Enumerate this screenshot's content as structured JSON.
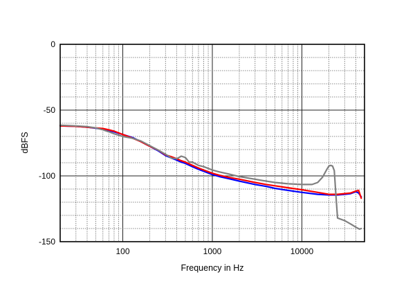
{
  "chart_data": {
    "type": "line",
    "title": "",
    "xlabel": "Frequency in Hz",
    "ylabel": "dBFS",
    "x_scale": "log",
    "xlim": [
      20,
      50000
    ],
    "ylim": [
      -150,
      0
    ],
    "x_ticks": [
      100,
      1000,
      10000
    ],
    "x_tick_labels": [
      "100",
      "1000",
      "10000"
    ],
    "y_ticks": [
      0,
      -50,
      -100,
      -150
    ],
    "y_tick_labels": [
      "0",
      "-50",
      "-100",
      "-150"
    ],
    "grid": true,
    "legend": "none",
    "series": [
      {
        "color": "#0000ff",
        "points": [
          [
            20,
            -62
          ],
          [
            30,
            -62.3
          ],
          [
            40,
            -63
          ],
          [
            50,
            -63.8
          ],
          [
            60,
            -64.5
          ],
          [
            70,
            -65.5
          ],
          [
            80,
            -66.5
          ],
          [
            100,
            -68.5
          ],
          [
            130,
            -71
          ],
          [
            160,
            -74
          ],
          [
            200,
            -77.5
          ],
          [
            250,
            -81
          ],
          [
            300,
            -84.5
          ],
          [
            350,
            -86.5
          ],
          [
            400,
            -88
          ],
          [
            450,
            -89.5
          ],
          [
            500,
            -90.5
          ],
          [
            600,
            -93
          ],
          [
            700,
            -95
          ],
          [
            800,
            -96.5
          ],
          [
            1000,
            -99
          ],
          [
            1200,
            -100.5
          ],
          [
            1500,
            -102
          ],
          [
            2000,
            -104
          ],
          [
            3000,
            -106.5
          ],
          [
            4000,
            -108
          ],
          [
            5000,
            -109.5
          ],
          [
            7000,
            -111
          ],
          [
            10000,
            -112.5
          ],
          [
            15000,
            -114
          ],
          [
            20000,
            -114.5
          ],
          [
            25000,
            -114.5
          ],
          [
            30000,
            -114
          ],
          [
            35000,
            -113.5
          ],
          [
            40000,
            -112
          ],
          [
            43000,
            -113
          ],
          [
            46000,
            -116
          ]
        ]
      },
      {
        "color": "#ff0000",
        "points": [
          [
            20,
            -62
          ],
          [
            30,
            -62.3
          ],
          [
            40,
            -63
          ],
          [
            50,
            -63.5
          ],
          [
            60,
            -64
          ],
          [
            70,
            -65
          ],
          [
            80,
            -66
          ],
          [
            100,
            -68.5
          ],
          [
            130,
            -71.5
          ],
          [
            160,
            -74
          ],
          [
            200,
            -77.5
          ],
          [
            250,
            -80.5
          ],
          [
            300,
            -84
          ],
          [
            350,
            -85.5
          ],
          [
            400,
            -87
          ],
          [
            450,
            -88.5
          ],
          [
            500,
            -89.5
          ],
          [
            600,
            -92
          ],
          [
            700,
            -94
          ],
          [
            800,
            -95.5
          ],
          [
            1000,
            -98
          ],
          [
            1200,
            -99.5
          ],
          [
            1500,
            -101
          ],
          [
            2000,
            -102.5
          ],
          [
            3000,
            -105
          ],
          [
            4000,
            -106.5
          ],
          [
            5000,
            -107.5
          ],
          [
            7000,
            -109
          ],
          [
            10000,
            -110.5
          ],
          [
            15000,
            -112.5
          ],
          [
            20000,
            -114
          ],
          [
            25000,
            -114
          ],
          [
            30000,
            -113.5
          ],
          [
            35000,
            -113
          ],
          [
            40000,
            -111.5
          ],
          [
            43000,
            -111
          ],
          [
            46000,
            -117
          ]
        ]
      },
      {
        "color": "#808080",
        "points": [
          [
            20,
            -61.5
          ],
          [
            30,
            -62
          ],
          [
            40,
            -62.5
          ],
          [
            50,
            -63.5
          ],
          [
            60,
            -65
          ],
          [
            70,
            -66.5
          ],
          [
            80,
            -68
          ],
          [
            100,
            -70
          ],
          [
            130,
            -71.5
          ],
          [
            160,
            -73.5
          ],
          [
            200,
            -77
          ],
          [
            250,
            -80.5
          ],
          [
            300,
            -83.5
          ],
          [
            350,
            -86.5
          ],
          [
            400,
            -87
          ],
          [
            450,
            -85
          ],
          [
            500,
            -86
          ],
          [
            550,
            -89.5
          ],
          [
            600,
            -89.5
          ],
          [
            700,
            -92
          ],
          [
            800,
            -93
          ],
          [
            1000,
            -95.5
          ],
          [
            1200,
            -97
          ],
          [
            1500,
            -98.5
          ],
          [
            2000,
            -100.5
          ],
          [
            3000,
            -102.5
          ],
          [
            4000,
            -104
          ],
          [
            5000,
            -105
          ],
          [
            7000,
            -106
          ],
          [
            10000,
            -106.5
          ],
          [
            13000,
            -106.5
          ],
          [
            15000,
            -105
          ],
          [
            17000,
            -101
          ],
          [
            19000,
            -95
          ],
          [
            20000,
            -92.5
          ],
          [
            21000,
            -92
          ],
          [
            22000,
            -92.5
          ],
          [
            23000,
            -96
          ],
          [
            24000,
            -115
          ],
          [
            25000,
            -132
          ],
          [
            30000,
            -134
          ],
          [
            35000,
            -136.5
          ],
          [
            40000,
            -139
          ],
          [
            44000,
            -140.5
          ],
          [
            46000,
            -140
          ]
        ]
      }
    ]
  }
}
